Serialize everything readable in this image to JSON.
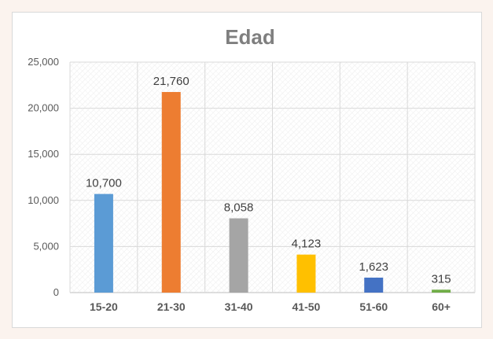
{
  "chart_data": {
    "type": "bar",
    "title": "Edad",
    "xlabel": "",
    "ylabel": "",
    "categories": [
      "15-20",
      "21-30",
      "31-40",
      "41-50",
      "51-60",
      "60+"
    ],
    "values": [
      10700,
      21760,
      8058,
      4123,
      1623,
      315
    ],
    "value_labels": [
      "10,700",
      "21,760",
      "8,058",
      "4,123",
      "1,623",
      "315"
    ],
    "colors": [
      "#5b9bd5",
      "#ed7d31",
      "#a5a5a5",
      "#ffc000",
      "#4472c4",
      "#70ad47"
    ],
    "ylim": [
      0,
      25000
    ],
    "yticks": [
      0,
      5000,
      10000,
      15000,
      20000,
      25000
    ],
    "ytick_labels": [
      "0",
      "5,000",
      "10,000",
      "15,000",
      "20,000",
      "25,000"
    ],
    "grid": true,
    "legend": "none"
  }
}
